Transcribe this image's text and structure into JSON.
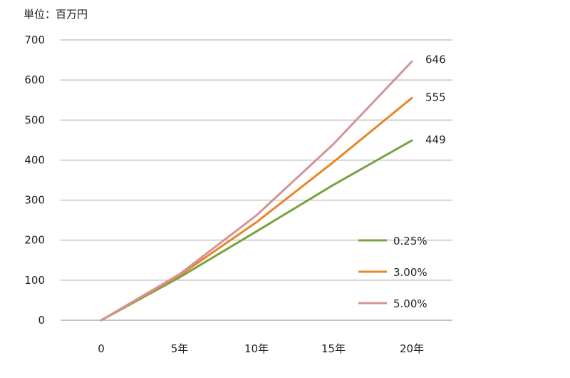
{
  "chart_data": {
    "type": "line",
    "unit_label": "単位：百万円",
    "categories": [
      "0",
      "5年",
      "10年",
      "15年",
      "20年"
    ],
    "ylim": [
      0,
      700
    ],
    "yticks": [
      0,
      100,
      200,
      300,
      400,
      500,
      600,
      700
    ],
    "grid": true,
    "legend_position": "right",
    "series": [
      {
        "name": "0.25%",
        "values": [
          0,
          107,
          222,
          338,
          449
        ],
        "end_label": "449",
        "color": "#77a340"
      },
      {
        "name": "3.00%",
        "values": [
          0,
          112,
          245,
          395,
          555
        ],
        "end_label": "555",
        "color": "#e8852a"
      },
      {
        "name": "5.00%",
        "values": [
          0,
          115,
          262,
          440,
          646
        ],
        "end_label": "646",
        "color": "#d49494"
      }
    ]
  }
}
